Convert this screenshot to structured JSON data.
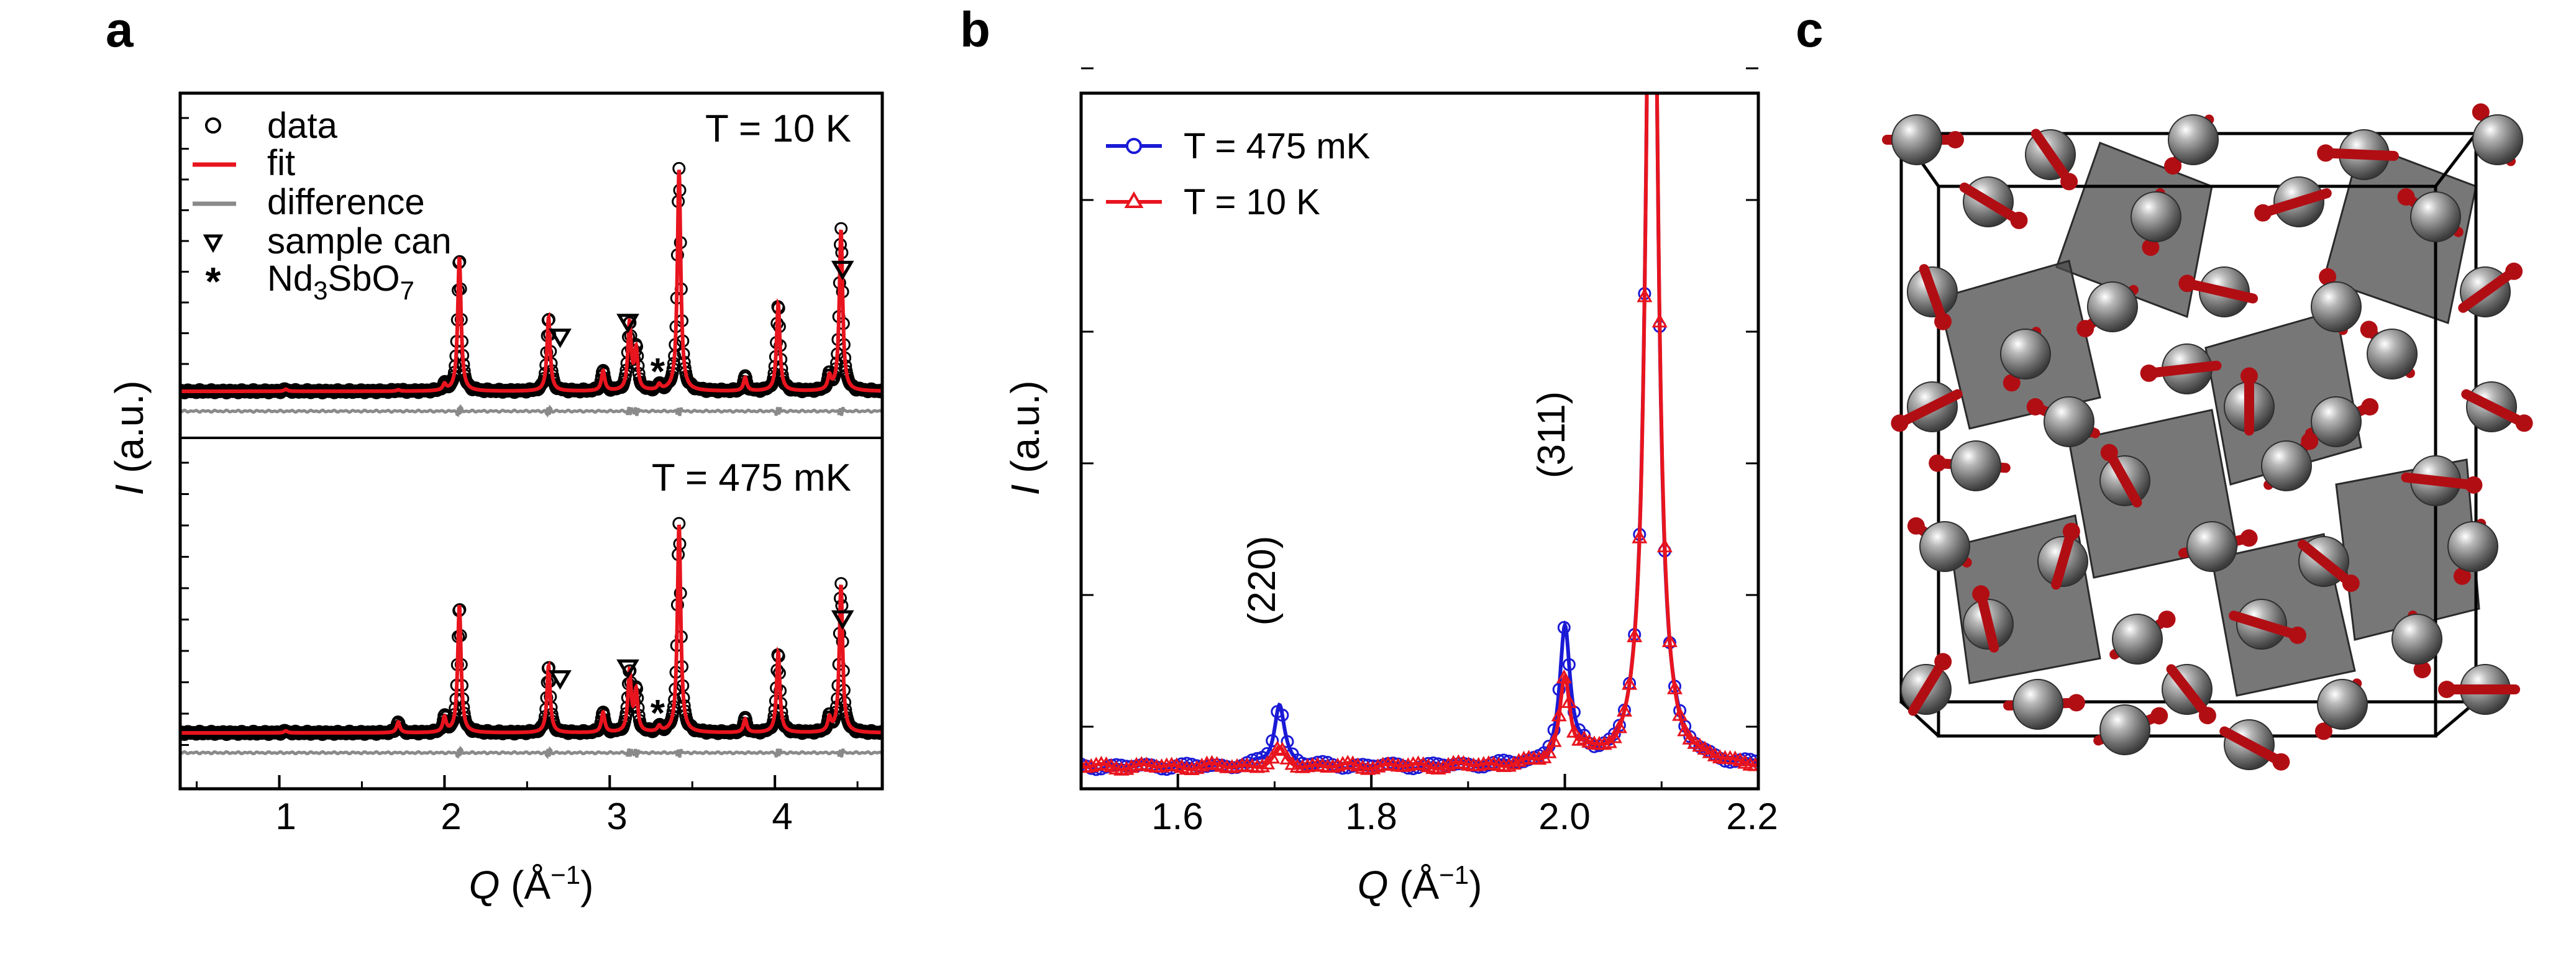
{
  "panels": {
    "a": {
      "letter": "a"
    },
    "b": {
      "letter": "b"
    },
    "c": {
      "letter": "c"
    }
  },
  "chart_data": [
    {
      "id": "a",
      "type": "line",
      "title": "",
      "xlabel": "Q (Å⁻¹)",
      "ylabel": "I (a.u.)",
      "xlim": [
        0.4,
        4.65
      ],
      "xticks": [
        "1",
        "2",
        "3",
        "4"
      ],
      "legend": {
        "placement": "top-left",
        "entries": [
          {
            "symbol": "open-circle",
            "label": "data"
          },
          {
            "symbol": "red-line",
            "label": "fit"
          },
          {
            "symbol": "gray-line",
            "label": "difference"
          },
          {
            "symbol": "open-down-triangle",
            "label": "sample can"
          },
          {
            "symbol": "asterisk",
            "label": "Nd3SbO7"
          }
        ]
      },
      "subpanels": [
        {
          "temperature_label": "T = 10 K",
          "baseline": 2.0,
          "peaks": [
            {
              "q": 1.04,
              "h": 0.3
            },
            {
              "q": 1.72,
              "h": 0.2
            },
            {
              "q": 2.0,
              "h": 0.9
            },
            {
              "q": 2.09,
              "h": 20.0
            },
            {
              "q": 2.63,
              "h": 11.0
            },
            {
              "q": 2.96,
              "h": 3.0
            },
            {
              "q": 3.12,
              "h": 10.0
            },
            {
              "q": 3.16,
              "h": 6.0
            },
            {
              "q": 3.3,
              "h": 0.8
            },
            {
              "q": 3.42,
              "h": 33.0
            },
            {
              "q": 3.82,
              "h": 2.0
            },
            {
              "q": 4.02,
              "h": 13.0
            },
            {
              "q": 4.33,
              "h": 2.0
            },
            {
              "q": 4.4,
              "h": 24.0
            }
          ],
          "sample_can_markers_q": [
            2.7,
            3.11,
            4.41
          ],
          "impurity_markers_q": [
            3.29
          ]
        },
        {
          "temperature_label": "T = 475 mK",
          "baseline": 2.0,
          "peaks": [
            {
              "q": 1.04,
              "h": 0.3
            },
            {
              "q": 1.72,
              "h": 1.6
            },
            {
              "q": 2.0,
              "h": 2.2
            },
            {
              "q": 2.09,
              "h": 19.0
            },
            {
              "q": 2.63,
              "h": 10.0
            },
            {
              "q": 2.96,
              "h": 3.0
            },
            {
              "q": 3.12,
              "h": 9.0
            },
            {
              "q": 3.16,
              "h": 6.0
            },
            {
              "q": 3.3,
              "h": 0.8
            },
            {
              "q": 3.42,
              "h": 31.0
            },
            {
              "q": 3.82,
              "h": 2.0
            },
            {
              "q": 4.02,
              "h": 12.0
            },
            {
              "q": 4.33,
              "h": 2.0
            },
            {
              "q": 4.4,
              "h": 22.0
            }
          ],
          "sample_can_markers_q": [
            2.7,
            3.11,
            4.41
          ],
          "impurity_markers_q": [
            3.29
          ]
        }
      ]
    },
    {
      "id": "b",
      "type": "line",
      "title": "",
      "xlabel": "Q (Å⁻¹)",
      "ylabel": "I (a.u.)",
      "xlim": [
        1.5,
        2.2
      ],
      "ylim": [
        0,
        100
      ],
      "xticks": [
        "1.6",
        "1.8",
        "2.0",
        "2.2"
      ],
      "legend": {
        "placement": "top-left"
      },
      "series": [
        {
          "name": "T = 475 mK",
          "color": "#1a1ad6",
          "marker": "open-circle",
          "baseline": 3.2,
          "peaks": [
            {
              "q": 1.705,
              "h": 9.0
            },
            {
              "q": 2.0,
              "h": 19.0
            },
            {
              "q": 2.02,
              "h": 1.5
            },
            {
              "q": 2.09,
              "h": 160.0
            }
          ]
        },
        {
          "name": "T = 10 K",
          "color": "#e8141e",
          "marker": "open-up-triangle",
          "baseline": 3.2,
          "peaks": [
            {
              "q": 1.705,
              "h": 2.3
            },
            {
              "q": 2.0,
              "h": 12.0
            },
            {
              "q": 2.02,
              "h": 1.5
            },
            {
              "q": 2.09,
              "h": 160.0
            }
          ]
        }
      ],
      "annotations": [
        {
          "text": "(220)",
          "q": 1.705
        },
        {
          "text": "(311)",
          "q": 1.99
        }
      ]
    }
  ],
  "structure": {
    "colors": {
      "atom": "#6a6a6a",
      "spin": "#b10e14",
      "tetra": "#4a4a4a",
      "cell": "#000000"
    }
  }
}
